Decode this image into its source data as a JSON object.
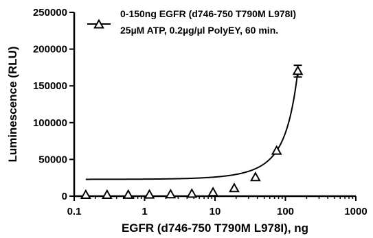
{
  "chart_data": {
    "type": "scatter",
    "x_scale": "log",
    "xlabel": "EGFR (d746-750 T790M L978I), ng",
    "ylabel": "Luminescence (RLU)",
    "xlim": [
      0.1,
      1000
    ],
    "ylim": [
      0,
      250000
    ],
    "x_ticks": [
      0.1,
      1,
      10,
      100,
      1000
    ],
    "x_tick_labels": [
      "0.1",
      "1",
      "10",
      "100",
      "1000"
    ],
    "y_ticks": [
      0,
      50000,
      100000,
      150000,
      200000,
      250000
    ],
    "y_tick_labels": [
      "0",
      "50000",
      "100000",
      "150000",
      "200000",
      "250000"
    ],
    "grid": false,
    "legend_position": "top-right",
    "legend": {
      "marker": "open-triangle",
      "line1": "0-150ng EGFR (d746-750 T790M L978I)",
      "line2": "25µM ATP, 0.2µg/µl PolyEY, 60 min."
    },
    "series": [
      {
        "marker": "open-triangle",
        "x": [
          0.146,
          0.293,
          0.586,
          1.17,
          2.34,
          4.69,
          9.38,
          18.75,
          37.5,
          75,
          150
        ],
        "y": [
          1500,
          1500,
          1600,
          1800,
          2200,
          3000,
          5000,
          10500,
          25500,
          61500,
          170000
        ],
        "error": [
          0,
          0,
          0,
          0,
          0,
          0,
          0,
          0,
          0,
          0,
          8000
        ],
        "fit": "exponential curve"
      }
    ],
    "colors": {
      "marks": "#000000"
    }
  }
}
